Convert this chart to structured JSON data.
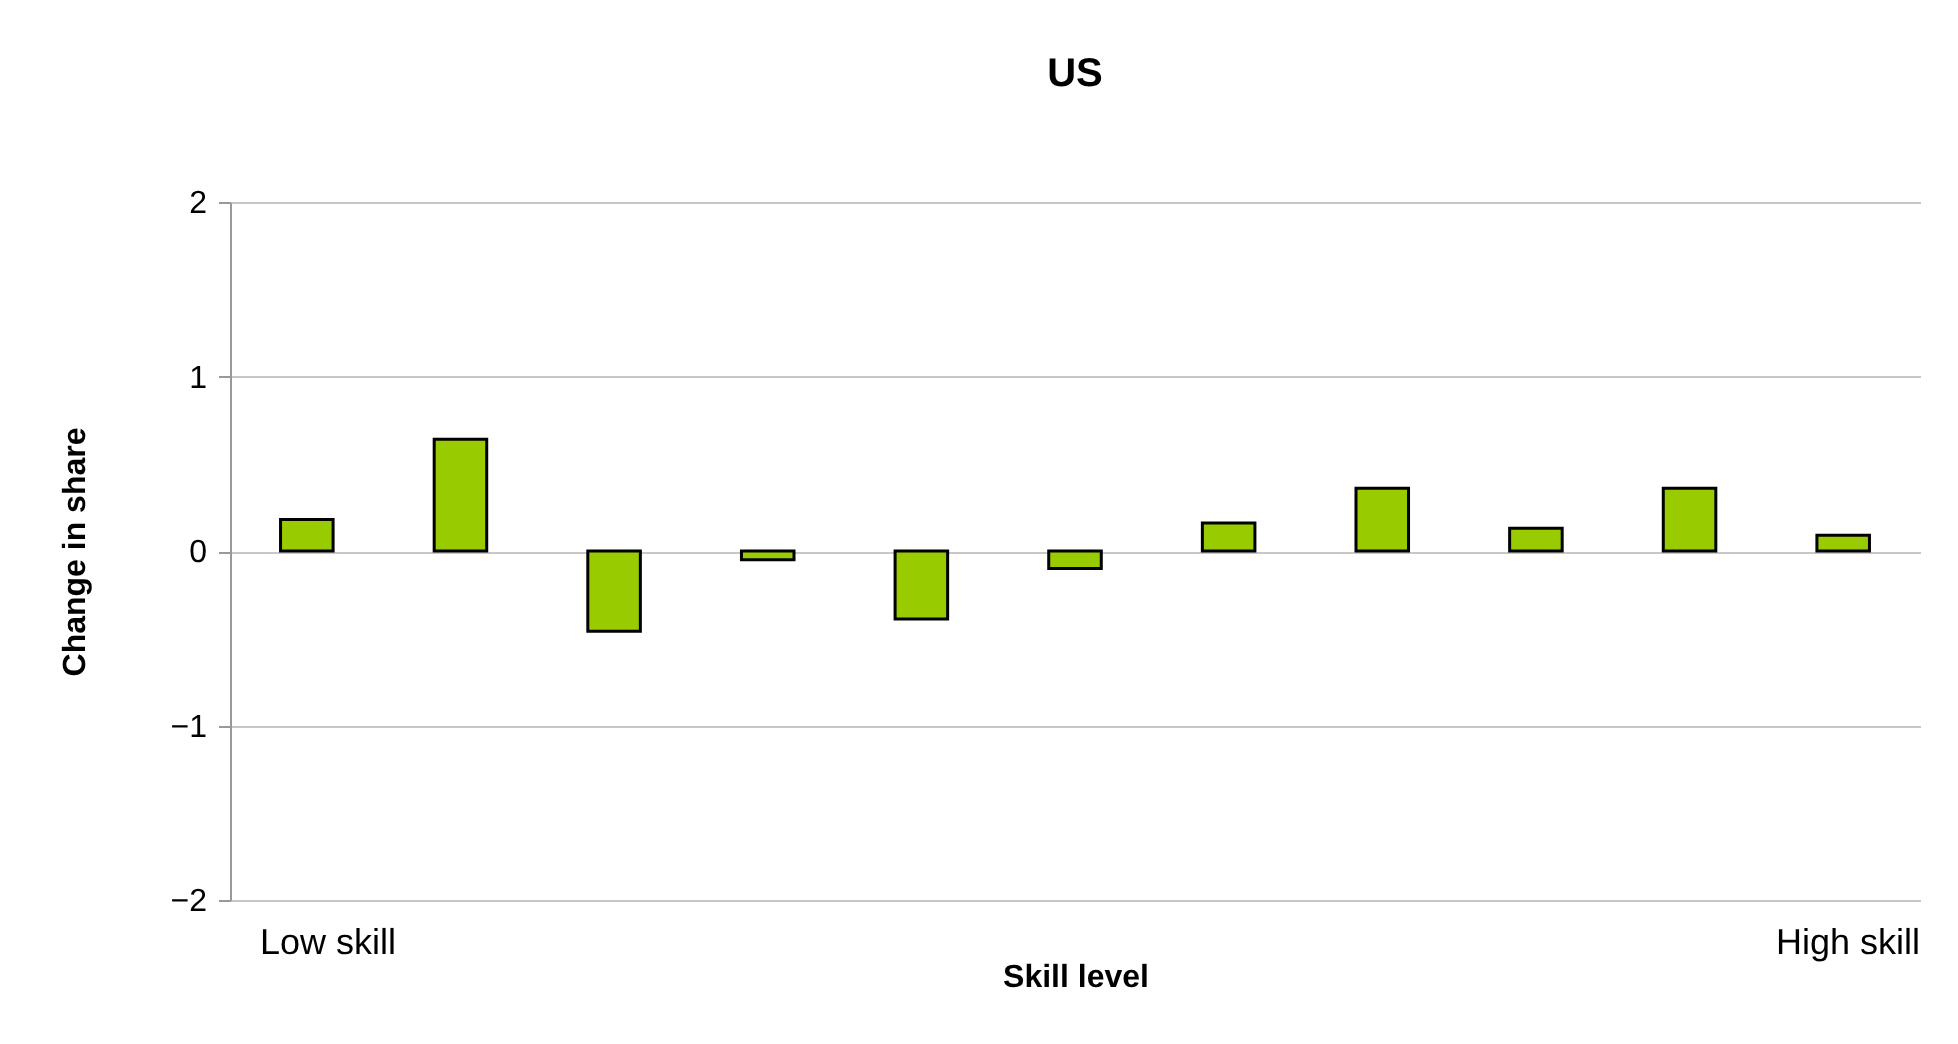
{
  "chart_data": {
    "type": "bar",
    "title": "US",
    "xlabel": "Skill level",
    "ylabel": "Change in share",
    "categories": [
      null,
      null,
      null,
      null,
      null,
      null,
      null,
      null,
      null,
      null,
      null
    ],
    "series": [
      {
        "color": "#99cc00",
        "values": [
          0.18,
          0.64,
          -0.46,
          -0.05,
          -0.39,
          -0.1,
          0.16,
          0.36,
          0.13,
          0.36,
          0.09
        ]
      }
    ],
    "ylim": [
      -2,
      2
    ],
    "yticks": [
      -2,
      -1,
      0,
      1,
      2
    ],
    "grid": "y",
    "tick_labels": "y",
    "annotations": [
      "Low skill",
      "High skill"
    ]
  }
}
